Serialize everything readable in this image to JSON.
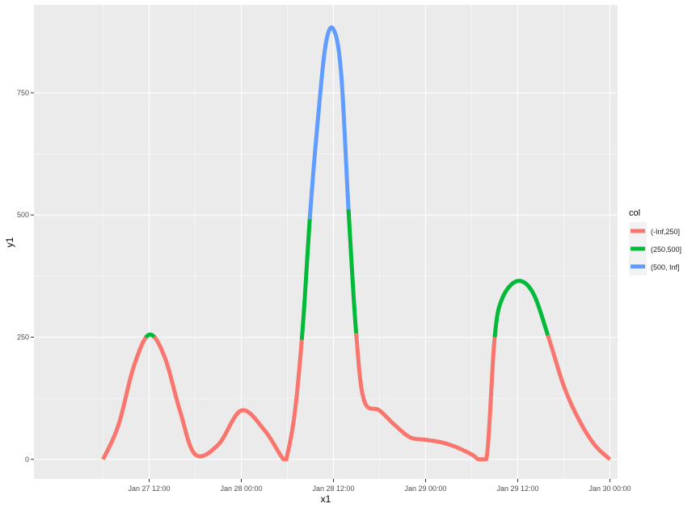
{
  "chart_data": {
    "type": "line",
    "title": "",
    "xlabel": "x1",
    "ylabel": "y1",
    "x_ticks": [
      "Jan 27 12:00",
      "Jan 28 00:00",
      "Jan 28 12:00",
      "Jan 29 00:00",
      "Jan 29 12:00",
      "Jan 30 00:00"
    ],
    "x_tick_values": [
      "2014-01-27T12:00",
      "2014-01-28T00:00",
      "2014-01-28T12:00",
      "2014-01-29T00:00",
      "2014-01-29T12:00",
      "2014-01-30T00:00"
    ],
    "x_range": [
      "2014-01-26T21:00",
      "2014-01-30T01:00"
    ],
    "y_ticks": [
      0,
      250,
      500,
      750
    ],
    "ylim": [
      -40,
      930
    ],
    "grid": true,
    "legend": {
      "title": "col",
      "position": "right",
      "entries": [
        {
          "label": "(-Inf,250]",
          "color": "#F8766D"
        },
        {
          "label": "(250,500]",
          "color": "#00BA38"
        },
        {
          "label": "(500, Inf]",
          "color": "#619CFF"
        }
      ]
    },
    "color_breaks": [
      250,
      500
    ],
    "x": [
      "2014-01-27T06:00",
      "2014-01-27T08:00",
      "2014-01-27T10:00",
      "2014-01-27T12:00",
      "2014-01-27T14:00",
      "2014-01-27T16:00",
      "2014-01-27T18:00",
      "2014-01-27T21:00",
      "2014-01-28T00:00",
      "2014-01-28T03:00",
      "2014-01-28T05:30",
      "2014-01-28T06:00",
      "2014-01-28T07:00",
      "2014-01-28T08:00",
      "2014-01-28T09:00",
      "2014-01-28T10:00",
      "2014-01-28T11:00",
      "2014-01-28T12:00",
      "2014-01-28T13:00",
      "2014-01-28T14:00",
      "2014-01-28T15:00",
      "2014-01-28T16:00",
      "2014-01-28T18:00",
      "2014-01-28T20:00",
      "2014-01-28T22:00",
      "2014-01-29T00:00",
      "2014-01-29T02:00",
      "2014-01-29T04:00",
      "2014-01-29T06:00",
      "2014-01-29T07:00",
      "2014-01-29T08:00",
      "2014-01-29T09:00",
      "2014-01-29T10:00",
      "2014-01-29T12:00",
      "2014-01-29T14:00",
      "2014-01-29T16:00",
      "2014-01-29T18:00",
      "2014-01-29T20:00",
      "2014-01-29T22:00",
      "2014-01-30T00:00"
    ],
    "y": [
      0,
      70,
      190,
      255,
      210,
      100,
      10,
      30,
      100,
      60,
      0,
      10,
      100,
      270,
      510,
      700,
      850,
      880,
      790,
      500,
      250,
      120,
      100,
      70,
      45,
      40,
      35,
      25,
      10,
      0,
      10,
      250,
      330,
      365,
      340,
      250,
      150,
      80,
      30,
      0
    ]
  }
}
